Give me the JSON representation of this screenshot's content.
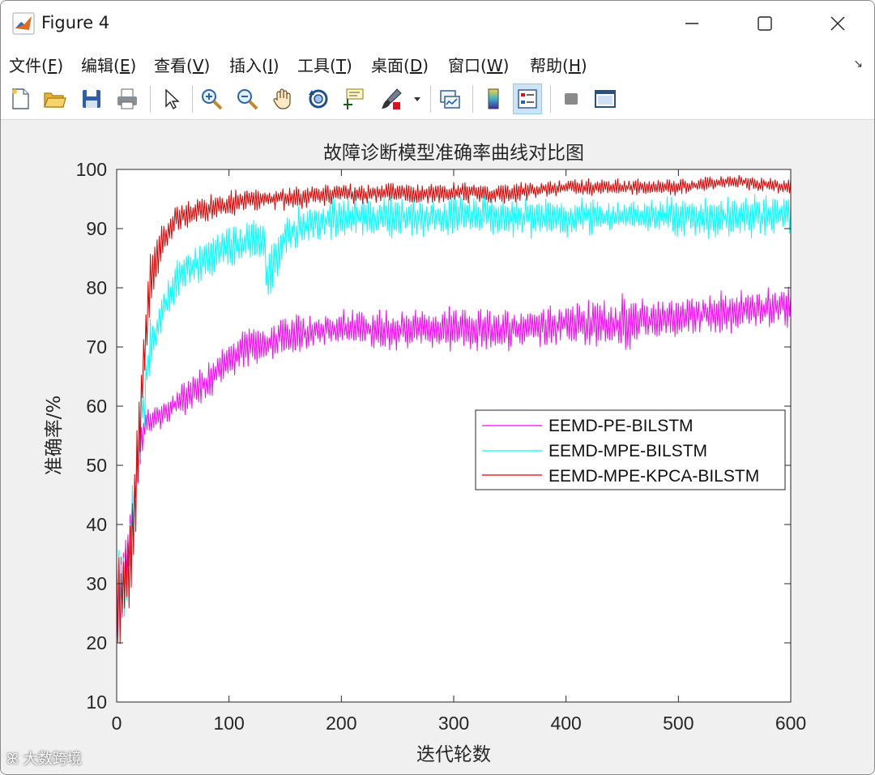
{
  "window": {
    "title": "Figure 4",
    "controls": {
      "minimize": "—",
      "maximize": "☐",
      "close": "✕"
    }
  },
  "menubar": {
    "items": [
      {
        "pre": "文件(",
        "key": "F",
        "post": ")"
      },
      {
        "pre": "编辑(",
        "key": "E",
        "post": ")"
      },
      {
        "pre": "查看(",
        "key": "V",
        "post": ")"
      },
      {
        "pre": "插入(",
        "key": "I",
        "post": ")"
      },
      {
        "pre": "工具(",
        "key": "T",
        "post": ")"
      },
      {
        "pre": "桌面(",
        "key": "D",
        "post": ")"
      },
      {
        "pre": "窗口(",
        "key": "W",
        "post": ")"
      },
      {
        "pre": "帮助(",
        "key": "H",
        "post": ")"
      }
    ]
  },
  "toolbar": {
    "icons": [
      "new-figure-icon",
      "open-file-icon",
      "save-icon",
      "print-icon",
      "pointer-icon",
      "zoom-in-icon",
      "zoom-out-icon",
      "pan-hand-icon",
      "rotate-3d-icon",
      "data-cursor-icon",
      "brush-icon",
      "brush-dropdown-icon",
      "link-plot-icon",
      "colorbar-icon",
      "legend-icon",
      "hide-plot-tools-icon",
      "show-plot-tools-icon"
    ]
  },
  "watermark": "大数跨境",
  "chart_data": {
    "type": "line",
    "title": "故障诊断模型准确率曲线对比图",
    "xlabel": "迭代轮数",
    "ylabel": "准确率/%",
    "xlim": [
      0,
      600
    ],
    "ylim": [
      10,
      100
    ],
    "xticks": [
      0,
      100,
      200,
      300,
      400,
      500,
      600
    ],
    "yticks": [
      10,
      20,
      30,
      40,
      50,
      60,
      70,
      80,
      90,
      100
    ],
    "grid": false,
    "legend_position": "right-middle",
    "series": [
      {
        "name": "EEMD-PE-BILSTM",
        "color": "#ff00ff",
        "x": [
          0,
          5,
          10,
          15,
          20,
          25,
          30,
          40,
          50,
          60,
          70,
          80,
          90,
          100,
          120,
          140,
          160,
          180,
          200,
          250,
          300,
          350,
          400,
          450,
          500,
          550,
          600
        ],
        "values": [
          22,
          30,
          36,
          44,
          52,
          57,
          58,
          58,
          60,
          61,
          63,
          64,
          66,
          68,
          70,
          71,
          72,
          73,
          73,
          73,
          73,
          73,
          74,
          74,
          75,
          76,
          77
        ],
        "amplitude": [
          6,
          6,
          5,
          5,
          3,
          2,
          2,
          2,
          2,
          3,
          3,
          3,
          3,
          3,
          3,
          3,
          3,
          2,
          3,
          3,
          3,
          3,
          3,
          4,
          3,
          3,
          3
        ]
      },
      {
        "name": "EEMD-MPE-BILSTM",
        "color": "#00ffff",
        "x": [
          0,
          5,
          10,
          15,
          20,
          25,
          30,
          40,
          50,
          60,
          70,
          80,
          90,
          100,
          120,
          130,
          135,
          140,
          150,
          160,
          180,
          200,
          250,
          300,
          350,
          400,
          450,
          500,
          550,
          600
        ],
        "values": [
          28,
          28,
          32,
          44,
          55,
          62,
          70,
          76,
          80,
          83,
          84,
          85,
          86,
          87,
          88,
          88,
          82,
          84,
          89,
          90,
          91,
          92,
          92,
          92,
          92,
          92,
          92,
          92,
          92,
          92
        ],
        "amplitude": [
          7,
          6,
          6,
          6,
          5,
          5,
          4,
          3,
          3,
          3,
          3,
          3,
          3,
          3,
          3,
          3,
          5,
          4,
          3,
          3,
          3,
          3,
          3,
          3,
          3,
          3,
          2,
          3,
          3,
          3
        ]
      },
      {
        "name": "EEMD-MPE-KPCA-BILSTM",
        "color": "#e00000",
        "x": [
          0,
          5,
          10,
          15,
          20,
          25,
          30,
          40,
          50,
          60,
          70,
          80,
          90,
          100,
          120,
          150,
          200,
          250,
          300,
          350,
          400,
          450,
          500,
          550,
          600
        ],
        "values": [
          27,
          28,
          31,
          40,
          55,
          70,
          82,
          88,
          91,
          92,
          93,
          93,
          94,
          94,
          95,
          95,
          96,
          96,
          96,
          96,
          97,
          97,
          97,
          98,
          97
        ],
        "amplitude": [
          8,
          7,
          6,
          7,
          6,
          5,
          4,
          3,
          2,
          2,
          2,
          2,
          2,
          2,
          1.5,
          1.5,
          1.5,
          1.5,
          1.5,
          1.5,
          1.2,
          1.2,
          1.2,
          1,
          1.2
        ]
      }
    ]
  }
}
